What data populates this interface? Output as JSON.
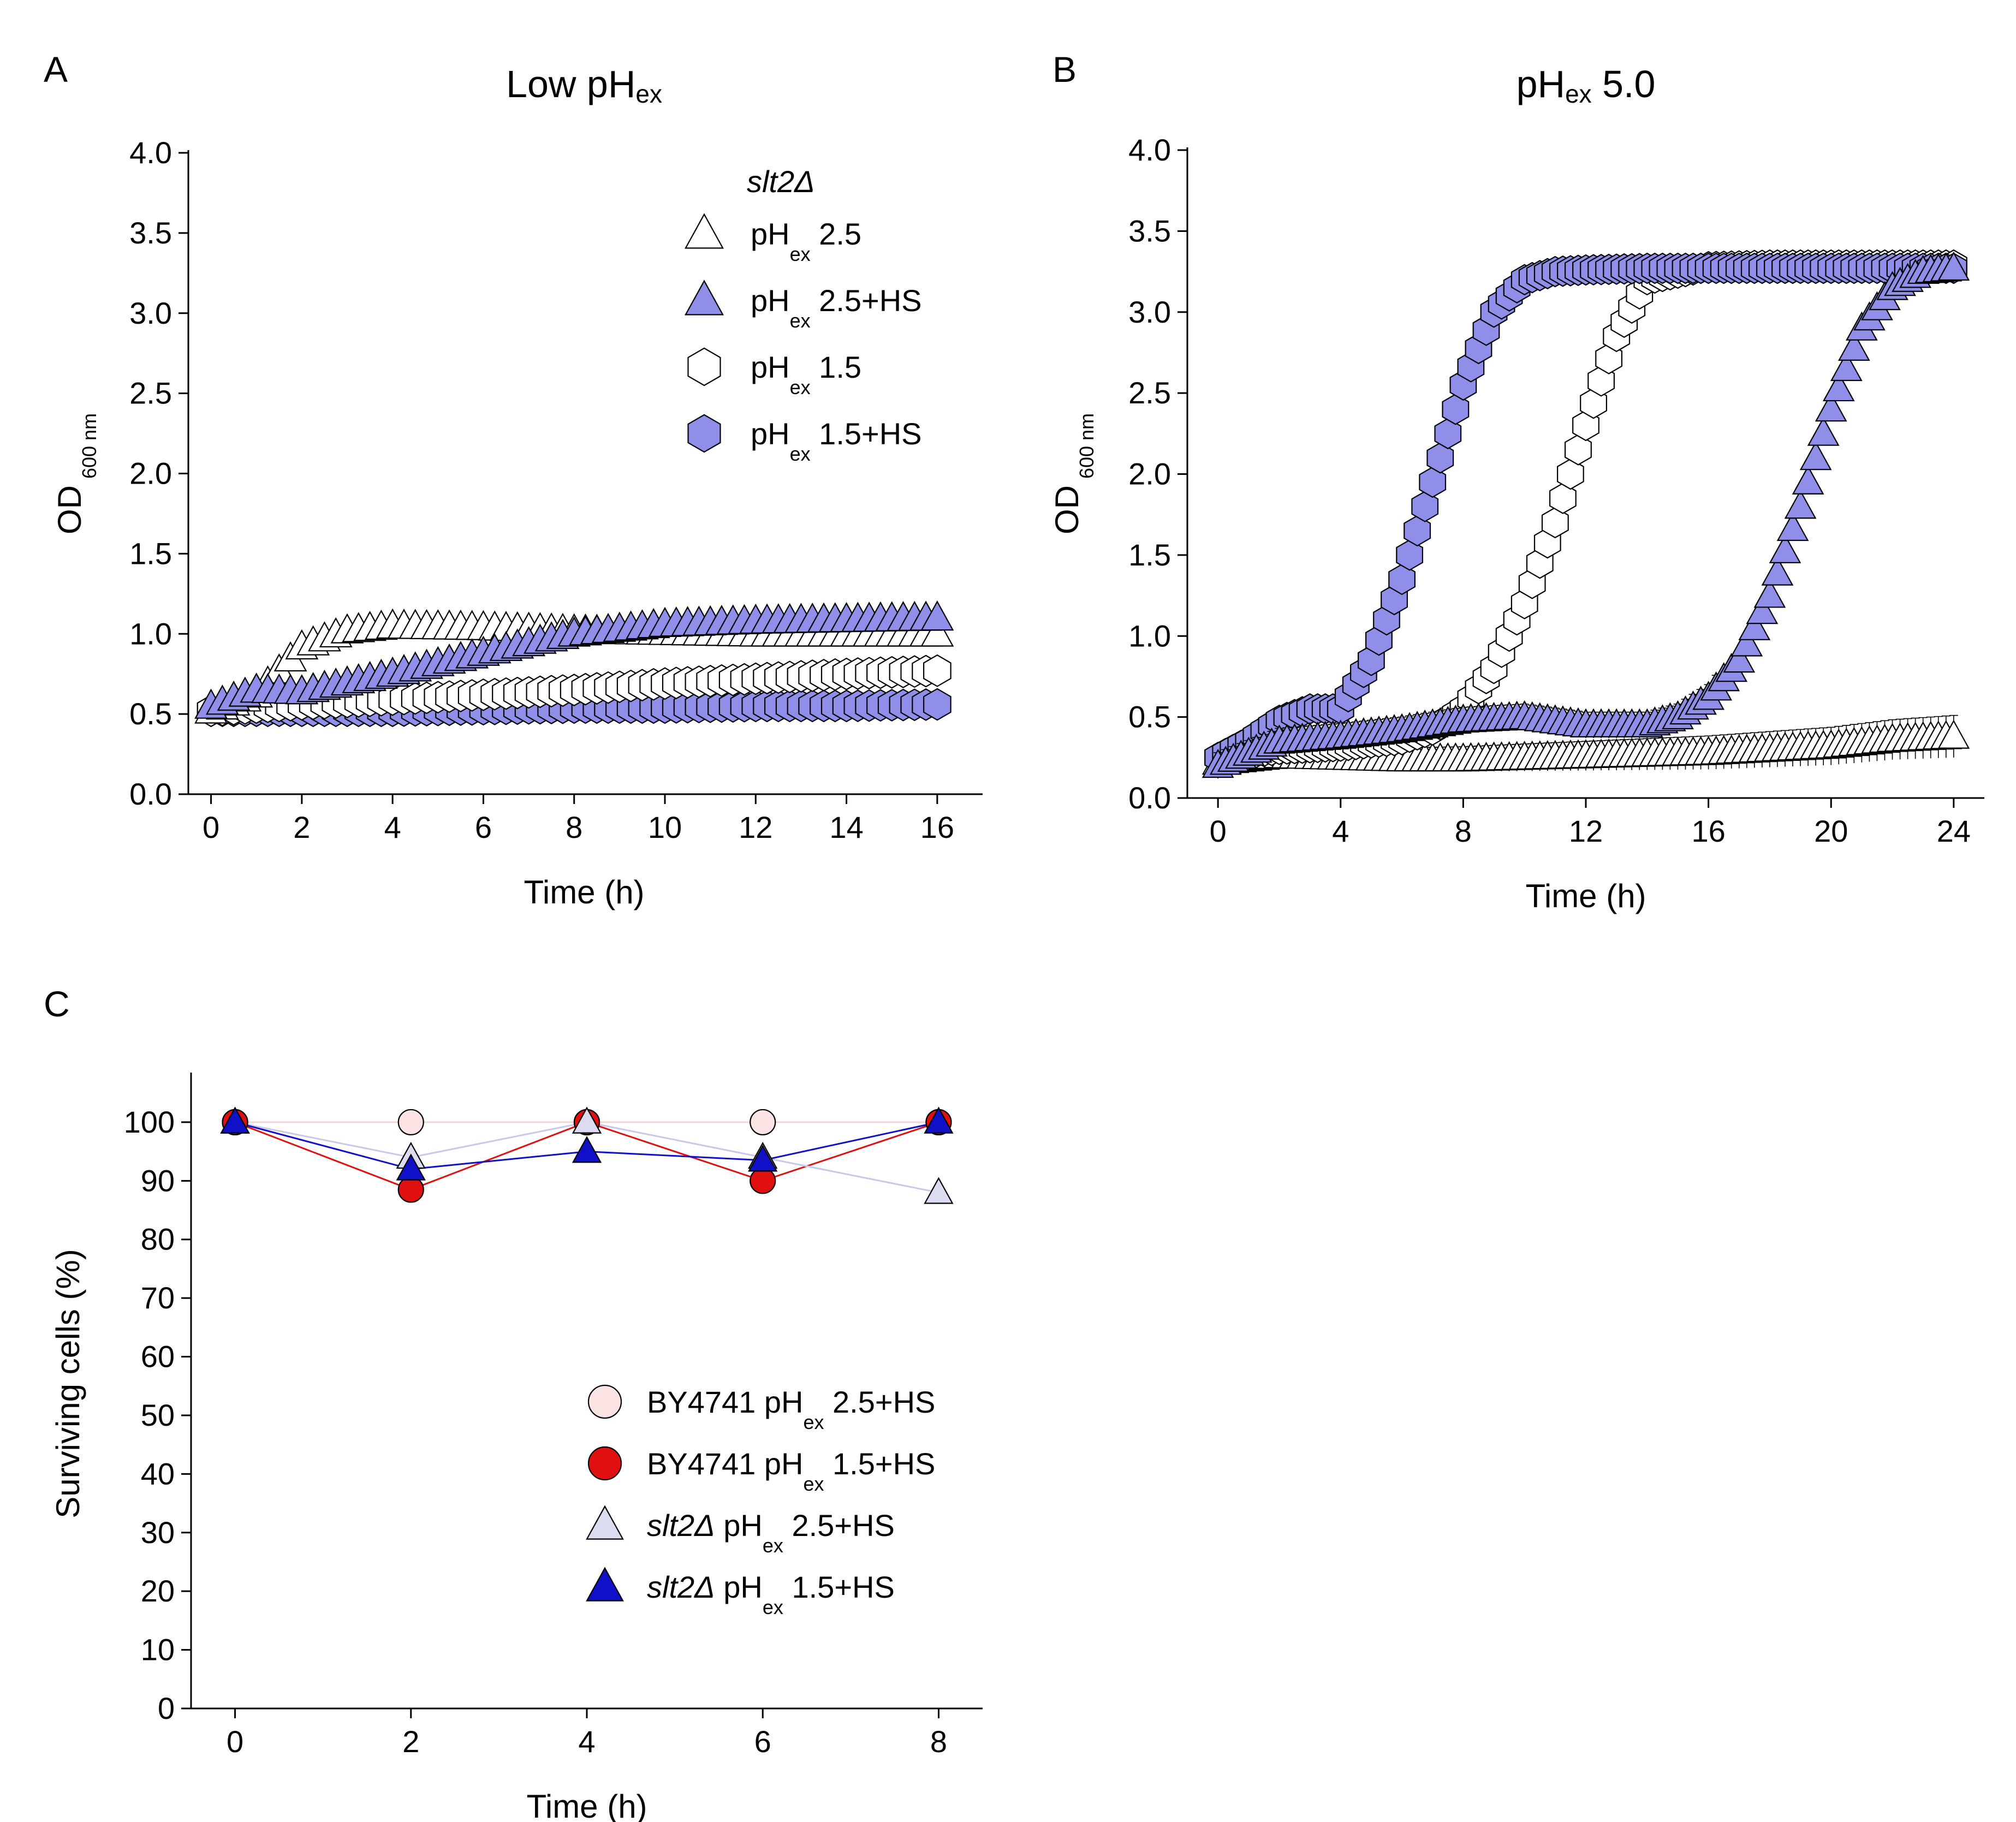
{
  "chart_data": [
    {
      "panel": "A",
      "type": "scatter",
      "title": "Low pHex",
      "title_parts": {
        "main": "Low pH",
        "sub": "ex"
      },
      "xlabel": "Time (h)",
      "ylabel": "OD",
      "ylabel_sub": "600 nm",
      "xlim": [
        -0.5,
        17.0
      ],
      "ylim": [
        0,
        4.0
      ],
      "xticks": [
        0,
        2,
        4,
        6,
        8,
        10,
        12,
        14,
        16
      ],
      "yticks": [
        "0.0",
        "0.5",
        "1.0",
        "1.5",
        "2.0",
        "2.5",
        "3.0",
        "3.5",
        "4.0"
      ],
      "legend_title": "slt2Δ",
      "legend": [
        {
          "marker": "triangle",
          "fill": "#ffffff",
          "pre": "pH",
          "sub": "ex",
          "post": " 2.5"
        },
        {
          "marker": "triangle",
          "fill": "#8f8fea",
          "pre": "pH",
          "sub": "ex",
          "post": " 2.5+HS"
        },
        {
          "marker": "hexagon",
          "fill": "#ffffff",
          "pre": "pH",
          "sub": "ex",
          "post": " 1.5"
        },
        {
          "marker": "hexagon",
          "fill": "#8f8fea",
          "pre": "pH",
          "sub": "ex",
          "post": " 1.5+HS"
        }
      ],
      "series": [
        {
          "name": "pHex 2.5",
          "marker": "triangle",
          "fill": "#ffffff",
          "x": [
            0,
            1,
            2,
            3,
            4,
            6,
            8,
            10,
            12,
            14,
            16
          ],
          "y": [
            0.52,
            0.62,
            0.92,
            1.02,
            1.05,
            1.04,
            1.02,
            1.01,
            1.0,
            1.0,
            1.0
          ]
        },
        {
          "name": "pHex 2.5+HS",
          "marker": "triangle",
          "fill": "#8f8fea",
          "x": [
            0,
            1,
            2,
            4,
            6,
            8,
            10,
            12,
            14,
            16
          ],
          "y": [
            0.55,
            0.65,
            0.64,
            0.75,
            0.88,
            1.0,
            1.06,
            1.08,
            1.09,
            1.1
          ]
        },
        {
          "name": "pHex 1.5",
          "marker": "hexagon",
          "fill": "#ffffff",
          "x": [
            0,
            2,
            4,
            6,
            8,
            10,
            12,
            14,
            16
          ],
          "y": [
            0.52,
            0.56,
            0.59,
            0.62,
            0.65,
            0.69,
            0.72,
            0.75,
            0.77
          ]
        },
        {
          "name": "pHex 1.5+HS",
          "marker": "hexagon",
          "fill": "#8f8fea",
          "x": [
            0,
            2,
            4,
            6,
            8,
            10,
            12,
            14,
            16
          ],
          "y": [
            0.52,
            0.52,
            0.52,
            0.53,
            0.54,
            0.54,
            0.55,
            0.55,
            0.56
          ]
        }
      ]
    },
    {
      "panel": "B",
      "type": "scatter",
      "title": "pHex 5.0",
      "title_parts": {
        "main": "pH",
        "sub": "ex",
        "post": " 5.0"
      },
      "xlabel": "Time (h)",
      "ylabel": "OD",
      "ylabel_sub": "600 nm",
      "xlim": [
        -1.0,
        25.0
      ],
      "ylim": [
        0,
        4.0
      ],
      "xticks": [
        0,
        4,
        8,
        12,
        16,
        20,
        24
      ],
      "yticks": [
        "0.0",
        "0.5",
        "1.0",
        "1.5",
        "2.0",
        "2.5",
        "3.0",
        "3.5",
        "4.0"
      ],
      "series": [
        {
          "name": "pHex 2.5",
          "marker": "triangle",
          "fill": "#ffffff",
          "x": [
            0,
            2,
            4,
            6,
            8,
            10,
            12,
            14,
            16,
            18,
            20,
            22,
            24
          ],
          "y": [
            0.22,
            0.26,
            0.25,
            0.24,
            0.24,
            0.25,
            0.26,
            0.27,
            0.28,
            0.3,
            0.32,
            0.36,
            0.38
          ]
        },
        {
          "name": "pHex 2.5+HS",
          "marker": "triangle",
          "fill": "#8f8fea",
          "x": [
            0,
            2,
            4,
            6,
            8,
            10,
            12,
            14,
            15,
            16,
            17,
            18,
            19,
            20,
            21,
            22,
            23,
            24
          ],
          "y": [
            0.2,
            0.35,
            0.38,
            0.42,
            0.48,
            0.5,
            0.45,
            0.45,
            0.5,
            0.62,
            0.85,
            1.25,
            1.8,
            2.4,
            2.9,
            3.15,
            3.25,
            3.27
          ]
        },
        {
          "name": "pHex 1.5",
          "marker": "hexagon",
          "fill": "#ffffff",
          "x": [
            0,
            2,
            4,
            6,
            7,
            8,
            9,
            10,
            11,
            12,
            13,
            14,
            16,
            18,
            20,
            22,
            24
          ],
          "y": [
            0.25,
            0.3,
            0.32,
            0.36,
            0.42,
            0.55,
            0.8,
            1.2,
            1.7,
            2.3,
            2.85,
            3.2,
            3.28,
            3.29,
            3.29,
            3.29,
            3.29
          ]
        },
        {
          "name": "pHex 1.5+HS",
          "marker": "hexagon",
          "fill": "#8f8fea",
          "x": [
            0,
            1,
            2,
            3,
            4,
            5,
            6,
            7,
            8,
            9,
            10,
            11,
            12,
            14,
            16,
            18,
            20,
            22,
            24
          ],
          "y": [
            0.25,
            0.35,
            0.48,
            0.55,
            0.55,
            0.85,
            1.35,
            1.95,
            2.55,
            3.0,
            3.2,
            3.25,
            3.26,
            3.27,
            3.27,
            3.27,
            3.27,
            3.27,
            3.27
          ]
        }
      ]
    },
    {
      "panel": "C",
      "type": "line",
      "xlabel": "Time (h)",
      "ylabel": "Surviving cells (%)",
      "xlim": [
        -0.5,
        8.5
      ],
      "ylim": [
        0,
        108
      ],
      "xticks": [
        0,
        2,
        4,
        6,
        8
      ],
      "yticks": [
        0,
        10,
        20,
        30,
        40,
        50,
        60,
        70,
        80,
        90,
        100
      ],
      "legend": [
        {
          "marker": "circle",
          "fill": "#fbe3e3",
          "italic": "",
          "pre": "BY4741 pH",
          "sub": "ex",
          "post": " 2.5+HS"
        },
        {
          "marker": "circle",
          "fill": "#e01010",
          "italic": "",
          "pre": "BY4741 pH",
          "sub": "ex",
          "post": " 1.5+HS"
        },
        {
          "marker": "triangle",
          "fill": "#dcdcf0",
          "italic": "slt2Δ",
          "pre": " pH",
          "sub": "ex",
          "post": " 2.5+HS"
        },
        {
          "marker": "triangle",
          "fill": "#1010c8",
          "italic": "slt2Δ",
          "pre": " pH",
          "sub": "ex",
          "post": " 1.5+HS"
        }
      ],
      "series": [
        {
          "name": "BY4741 pHex 2.5+HS",
          "marker": "circle",
          "fill": "#fbe3e3",
          "line": "#f5d5d5",
          "x": [
            0,
            2,
            4,
            6,
            8
          ],
          "y": [
            100,
            100,
            100,
            100,
            100
          ]
        },
        {
          "name": "BY4741 pHex 1.5+HS",
          "marker": "circle",
          "fill": "#e01010",
          "line": "#e01010",
          "x": [
            0,
            2,
            4,
            6,
            8
          ],
          "y": [
            100,
            88.5,
            100,
            90,
            100
          ]
        },
        {
          "name": "slt2Δ pHex 2.5+HS",
          "marker": "triangle",
          "fill": "#dcdcf0",
          "line": "#c8c8ec",
          "x": [
            0,
            2,
            4,
            6,
            8
          ],
          "y": [
            100,
            94,
            100,
            94,
            88
          ]
        },
        {
          "name": "slt2Δ pHex 1.5+HS",
          "marker": "triangle",
          "fill": "#1010c8",
          "line": "#1010c8",
          "x": [
            0,
            2,
            4,
            6,
            8
          ],
          "y": [
            100,
            92,
            95,
            93.5,
            100
          ]
        }
      ]
    }
  ]
}
